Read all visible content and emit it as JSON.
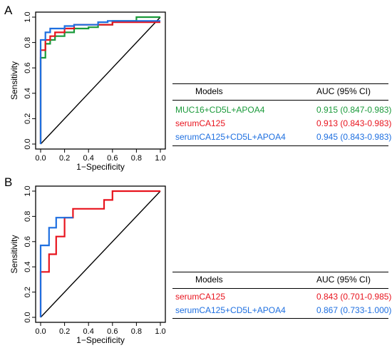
{
  "panels": [
    {
      "letter": "A",
      "chart_data": {
        "type": "line",
        "title": "",
        "xlabel": "1−Specificity",
        "ylabel": "Sensitivity",
        "xlim": [
          0,
          1
        ],
        "ylim": [
          0,
          1
        ],
        "xticks": [
          "0.0",
          "0.2",
          "0.4",
          "0.6",
          "0.8",
          "1.0"
        ],
        "yticks": [
          "0.0",
          "0.2",
          "0.4",
          "0.6",
          "0.8",
          "1.0"
        ],
        "reference_line": {
          "x": [
            0,
            1
          ],
          "y": [
            0,
            1
          ],
          "color": "#000000"
        },
        "series": [
          {
            "color": "#1a9a3a",
            "x": [
              0.0,
              0.0,
              0.04,
              0.04,
              0.08,
              0.08,
              0.12,
              0.12,
              0.2,
              0.2,
              0.28,
              0.28,
              0.4,
              0.4,
              0.48,
              0.48,
              0.6,
              0.6,
              0.8,
              0.8,
              1.0
            ],
            "y": [
              0.0,
              0.68,
              0.68,
              0.79,
              0.79,
              0.82,
              0.82,
              0.85,
              0.85,
              0.88,
              0.88,
              0.91,
              0.91,
              0.92,
              0.92,
              0.94,
              0.94,
              0.97,
              0.97,
              1.0,
              1.0
            ]
          },
          {
            "color": "#e8141e",
            "x": [
              0.0,
              0.0,
              0.04,
              0.04,
              0.08,
              0.08,
              0.12,
              0.12,
              0.2,
              0.2,
              0.28,
              0.28,
              0.6,
              0.6,
              1.0
            ],
            "y": [
              0.0,
              0.74,
              0.74,
              0.82,
              0.82,
              0.85,
              0.85,
              0.88,
              0.88,
              0.91,
              0.91,
              0.94,
              0.94,
              0.96,
              0.96
            ]
          },
          {
            "color": "#1e6fe0",
            "x": [
              0.0,
              0.0,
              0.04,
              0.04,
              0.08,
              0.08,
              0.2,
              0.2,
              0.28,
              0.28,
              0.48,
              0.48,
              0.56,
              0.56,
              1.0
            ],
            "y": [
              0.0,
              0.82,
              0.82,
              0.88,
              0.88,
              0.91,
              0.91,
              0.93,
              0.93,
              0.94,
              0.94,
              0.96,
              0.96,
              0.97,
              0.97
            ]
          }
        ]
      },
      "table": {
        "header": {
          "col1": "Models",
          "col2": "AUC (95% CI)"
        },
        "rows": [
          {
            "model": "MUC16+CD5L+APOA4",
            "auc": "0.915 (0.847-0.983)",
            "color": "#1a9a3a"
          },
          {
            "model": "serumCA125",
            "auc": "0.913 (0.843-0.983)",
            "color": "#e8141e"
          },
          {
            "model": "serumCA125+CD5L+APOA4",
            "auc": "0.945 (0.843-0.983)",
            "color": "#1e6fe0"
          }
        ]
      }
    },
    {
      "letter": "B",
      "chart_data": {
        "type": "line",
        "title": "",
        "xlabel": "1−Specificity",
        "ylabel": "Sensitivity",
        "xlim": [
          0,
          1
        ],
        "ylim": [
          0,
          1
        ],
        "xticks": [
          "0.0",
          "0.2",
          "0.4",
          "0.6",
          "0.8",
          "1.0"
        ],
        "yticks": [
          "0.0",
          "0.2",
          "0.4",
          "0.6",
          "0.8",
          "1.0"
        ],
        "reference_line": {
          "x": [
            0,
            1
          ],
          "y": [
            0,
            1
          ],
          "color": "#000000"
        },
        "series": [
          {
            "color": "#e8141e",
            "x": [
              0.0,
              0.0,
              0.07,
              0.07,
              0.13,
              0.13,
              0.2,
              0.2,
              0.27,
              0.27,
              0.53,
              0.53,
              0.6,
              0.6,
              1.0
            ],
            "y": [
              0.0,
              0.36,
              0.36,
              0.5,
              0.5,
              0.64,
              0.64,
              0.79,
              0.79,
              0.86,
              0.86,
              0.93,
              0.93,
              1.0,
              1.0
            ]
          },
          {
            "color": "#1e6fe0",
            "x": [
              0.0,
              0.0,
              0.07,
              0.07,
              0.13,
              0.13,
              0.27
            ],
            "y": [
              0.0,
              0.57,
              0.57,
              0.71,
              0.71,
              0.79,
              0.79
            ]
          }
        ]
      },
      "table": {
        "header": {
          "col1": "Models",
          "col2": "AUC (95% CI)"
        },
        "rows": [
          {
            "model": "serumCA125",
            "auc": "0.843 (0.701-0.985)",
            "color": "#e8141e"
          },
          {
            "model": "serumCA125+CD5L+APOA4",
            "auc": "0.867 (0.733-1.000)",
            "color": "#1e6fe0"
          }
        ]
      }
    }
  ]
}
